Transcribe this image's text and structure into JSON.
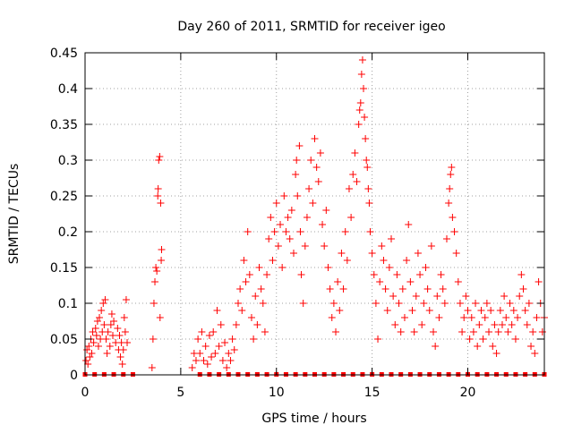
{
  "chart_data": {
    "type": "scatter",
    "title": "Day 260 of 2011, SRMTID for receiver igeo",
    "xlabel": "GPS time / hours",
    "ylabel": "SRMTID / TECUs",
    "xlim": [
      0,
      24
    ],
    "ylim": [
      0,
      0.45
    ],
    "x_ticks": [
      0,
      5,
      10,
      15,
      20
    ],
    "x_tick_labels": [
      "0",
      "5",
      "10",
      "15",
      "20"
    ],
    "y_ticks": [
      0,
      0.05,
      0.1,
      0.15,
      0.2,
      0.25,
      0.3,
      0.35,
      0.4,
      0.45
    ],
    "y_tick_labels": [
      "0",
      "0.05",
      "0.1",
      "0.15",
      "0.2",
      "0.25",
      "0.3",
      "0.35",
      "0.4",
      "0.45"
    ],
    "grid": true,
    "marker": "plus",
    "series": [
      {
        "name": "SRMTID",
        "color": "#ff0000",
        "points": [
          [
            0.05,
            0.02
          ],
          [
            0.1,
            0.035
          ],
          [
            0.15,
            0.015
          ],
          [
            0.2,
            0.04
          ],
          [
            0.25,
            0.025
          ],
          [
            0.3,
            0.05
          ],
          [
            0.35,
            0.03
          ],
          [
            0.4,
            0.06
          ],
          [
            0.45,
            0.045
          ],
          [
            0.55,
            0.065
          ],
          [
            0.6,
            0.055
          ],
          [
            0.65,
            0.075
          ],
          [
            0.7,
            0.04
          ],
          [
            0.75,
            0.08
          ],
          [
            0.8,
            0.05
          ],
          [
            0.85,
            0.09
          ],
          [
            0.9,
            0.06
          ],
          [
            0.95,
            0.1
          ],
          [
            1.0,
            0.07
          ],
          [
            1.05,
            0.105
          ],
          [
            1.1,
            0.05
          ],
          [
            1.15,
            0.03
          ],
          [
            1.2,
            0.06
          ],
          [
            1.3,
            0.04
          ],
          [
            1.35,
            0.07
          ],
          [
            1.4,
            0.085
          ],
          [
            1.45,
            0.055
          ],
          [
            1.5,
            0.075
          ],
          [
            1.6,
            0.045
          ],
          [
            1.7,
            0.065
          ],
          [
            1.75,
            0.035
          ],
          [
            1.8,
            0.055
          ],
          [
            1.85,
            0.025
          ],
          [
            1.9,
            0.045
          ],
          [
            1.95,
            0.015
          ],
          [
            2.0,
            0.035
          ],
          [
            2.05,
            0.08
          ],
          [
            2.1,
            0.06
          ],
          [
            2.15,
            0.105
          ],
          [
            2.2,
            0.045
          ],
          [
            3.5,
            0.01
          ],
          [
            3.55,
            0.05
          ],
          [
            3.6,
            0.1
          ],
          [
            3.65,
            0.13
          ],
          [
            3.7,
            0.15
          ],
          [
            3.75,
            0.145
          ],
          [
            3.8,
            0.25
          ],
          [
            3.82,
            0.26
          ],
          [
            3.85,
            0.3
          ],
          [
            3.9,
            0.305
          ],
          [
            3.95,
            0.24
          ],
          [
            4.0,
            0.175
          ],
          [
            3.98,
            0.16
          ],
          [
            3.92,
            0.08
          ],
          [
            5.6,
            0.01
          ],
          [
            5.7,
            0.03
          ],
          [
            5.8,
            0.02
          ],
          [
            5.9,
            0.05
          ],
          [
            6.0,
            0.03
          ],
          [
            6.1,
            0.06
          ],
          [
            6.2,
            0.02
          ],
          [
            6.3,
            0.04
          ],
          [
            6.4,
            0.015
          ],
          [
            6.5,
            0.055
          ],
          [
            6.6,
            0.025
          ],
          [
            6.7,
            0.06
          ],
          [
            6.8,
            0.03
          ],
          [
            6.9,
            0.09
          ],
          [
            7.0,
            0.04
          ],
          [
            7.1,
            0.07
          ],
          [
            7.2,
            0.02
          ],
          [
            7.3,
            0.045
          ],
          [
            7.4,
            0.01
          ],
          [
            7.5,
            0.03
          ],
          [
            7.6,
            0.02
          ],
          [
            7.7,
            0.05
          ],
          [
            7.8,
            0.035
          ],
          [
            7.9,
            0.07
          ],
          [
            8.0,
            0.1
          ],
          [
            8.1,
            0.12
          ],
          [
            8.2,
            0.09
          ],
          [
            8.3,
            0.16
          ],
          [
            8.4,
            0.13
          ],
          [
            8.5,
            0.2
          ],
          [
            8.6,
            0.14
          ],
          [
            8.7,
            0.08
          ],
          [
            8.8,
            0.05
          ],
          [
            8.9,
            0.11
          ],
          [
            9.0,
            0.07
          ],
          [
            9.1,
            0.15
          ],
          [
            9.2,
            0.12
          ],
          [
            9.3,
            0.1
          ],
          [
            9.4,
            0.06
          ],
          [
            9.5,
            0.14
          ],
          [
            9.6,
            0.19
          ],
          [
            9.7,
            0.22
          ],
          [
            9.8,
            0.16
          ],
          [
            9.9,
            0.2
          ],
          [
            10.0,
            0.24
          ],
          [
            10.1,
            0.18
          ],
          [
            10.2,
            0.21
          ],
          [
            10.3,
            0.15
          ],
          [
            10.4,
            0.25
          ],
          [
            10.5,
            0.2
          ],
          [
            10.6,
            0.22
          ],
          [
            10.7,
            0.19
          ],
          [
            10.8,
            0.23
          ],
          [
            10.9,
            0.17
          ],
          [
            11.0,
            0.28
          ],
          [
            11.05,
            0.3
          ],
          [
            11.1,
            0.25
          ],
          [
            11.2,
            0.32
          ],
          [
            11.25,
            0.2
          ],
          [
            11.3,
            0.14
          ],
          [
            11.4,
            0.1
          ],
          [
            11.5,
            0.18
          ],
          [
            11.6,
            0.22
          ],
          [
            11.7,
            0.26
          ],
          [
            11.8,
            0.3
          ],
          [
            11.9,
            0.24
          ],
          [
            12.0,
            0.33
          ],
          [
            12.1,
            0.29
          ],
          [
            12.2,
            0.27
          ],
          [
            12.3,
            0.31
          ],
          [
            12.4,
            0.21
          ],
          [
            12.5,
            0.18
          ],
          [
            12.6,
            0.23
          ],
          [
            12.7,
            0.15
          ],
          [
            12.8,
            0.12
          ],
          [
            12.9,
            0.08
          ],
          [
            13.0,
            0.1
          ],
          [
            13.1,
            0.06
          ],
          [
            13.2,
            0.13
          ],
          [
            13.3,
            0.09
          ],
          [
            13.4,
            0.17
          ],
          [
            13.5,
            0.12
          ],
          [
            13.6,
            0.2
          ],
          [
            13.7,
            0.16
          ],
          [
            13.8,
            0.26
          ],
          [
            13.9,
            0.22
          ],
          [
            14.0,
            0.28
          ],
          [
            14.1,
            0.31
          ],
          [
            14.2,
            0.27
          ],
          [
            14.3,
            0.35
          ],
          [
            14.35,
            0.37
          ],
          [
            14.4,
            0.38
          ],
          [
            14.45,
            0.42
          ],
          [
            14.5,
            0.44
          ],
          [
            14.55,
            0.4
          ],
          [
            14.6,
            0.36
          ],
          [
            14.65,
            0.33
          ],
          [
            14.7,
            0.3
          ],
          [
            14.75,
            0.29
          ],
          [
            14.8,
            0.26
          ],
          [
            14.85,
            0.24
          ],
          [
            14.9,
            0.2
          ],
          [
            15.0,
            0.17
          ],
          [
            15.1,
            0.14
          ],
          [
            15.2,
            0.1
          ],
          [
            15.3,
            0.05
          ],
          [
            15.4,
            0.13
          ],
          [
            15.5,
            0.18
          ],
          [
            15.6,
            0.16
          ],
          [
            15.7,
            0.12
          ],
          [
            15.8,
            0.09
          ],
          [
            15.9,
            0.15
          ],
          [
            16.0,
            0.19
          ],
          [
            16.1,
            0.11
          ],
          [
            16.2,
            0.07
          ],
          [
            16.3,
            0.14
          ],
          [
            16.4,
            0.1
          ],
          [
            16.5,
            0.06
          ],
          [
            16.6,
            0.12
          ],
          [
            16.7,
            0.08
          ],
          [
            16.8,
            0.16
          ],
          [
            16.9,
            0.21
          ],
          [
            17.0,
            0.13
          ],
          [
            17.1,
            0.09
          ],
          [
            17.2,
            0.06
          ],
          [
            17.3,
            0.11
          ],
          [
            17.4,
            0.17
          ],
          [
            17.5,
            0.14
          ],
          [
            17.6,
            0.07
          ],
          [
            17.7,
            0.1
          ],
          [
            17.8,
            0.15
          ],
          [
            17.9,
            0.12
          ],
          [
            18.0,
            0.09
          ],
          [
            18.1,
            0.18
          ],
          [
            18.2,
            0.06
          ],
          [
            18.3,
            0.04
          ],
          [
            18.4,
            0.11
          ],
          [
            18.5,
            0.08
          ],
          [
            18.6,
            0.14
          ],
          [
            18.7,
            0.12
          ],
          [
            18.8,
            0.1
          ],
          [
            18.9,
            0.19
          ],
          [
            19.0,
            0.24
          ],
          [
            19.05,
            0.26
          ],
          [
            19.1,
            0.28
          ],
          [
            19.15,
            0.29
          ],
          [
            19.2,
            0.22
          ],
          [
            19.3,
            0.2
          ],
          [
            19.4,
            0.17
          ],
          [
            19.5,
            0.13
          ],
          [
            19.6,
            0.1
          ],
          [
            19.7,
            0.06
          ],
          [
            19.8,
            0.08
          ],
          [
            19.9,
            0.11
          ],
          [
            20.0,
            0.09
          ],
          [
            20.1,
            0.05
          ],
          [
            20.2,
            0.08
          ],
          [
            20.3,
            0.06
          ],
          [
            20.4,
            0.1
          ],
          [
            20.5,
            0.04
          ],
          [
            20.6,
            0.07
          ],
          [
            20.7,
            0.09
          ],
          [
            20.8,
            0.05
          ],
          [
            20.9,
            0.08
          ],
          [
            21.0,
            0.1
          ],
          [
            21.1,
            0.06
          ],
          [
            21.2,
            0.09
          ],
          [
            21.3,
            0.04
          ],
          [
            21.4,
            0.07
          ],
          [
            21.5,
            0.03
          ],
          [
            21.6,
            0.06
          ],
          [
            21.7,
            0.09
          ],
          [
            21.8,
            0.07
          ],
          [
            21.9,
            0.11
          ],
          [
            22.0,
            0.08
          ],
          [
            22.1,
            0.06
          ],
          [
            22.2,
            0.1
          ],
          [
            22.3,
            0.07
          ],
          [
            22.4,
            0.09
          ],
          [
            22.5,
            0.05
          ],
          [
            22.6,
            0.08
          ],
          [
            22.7,
            0.11
          ],
          [
            22.8,
            0.14
          ],
          [
            22.9,
            0.12
          ],
          [
            23.0,
            0.09
          ],
          [
            23.1,
            0.07
          ],
          [
            23.2,
            0.1
          ],
          [
            23.3,
            0.04
          ],
          [
            23.4,
            0.06
          ],
          [
            23.5,
            0.03
          ],
          [
            23.6,
            0.08
          ],
          [
            23.7,
            0.13
          ],
          [
            23.8,
            0.1
          ],
          [
            23.9,
            0.06
          ],
          [
            24.0,
            0.08
          ]
        ],
        "baseline_markers_x": [
          0.0,
          0.5,
          1.0,
          1.5,
          2.0,
          2.5,
          6.0,
          6.5,
          7.0,
          7.5,
          8.0,
          8.5,
          9.0,
          9.5,
          10.0,
          10.5,
          11.0,
          11.5,
          12.0,
          12.5,
          13.0,
          13.5,
          14.0,
          14.5,
          15.0,
          15.5,
          16.0,
          16.5,
          17.0,
          17.5,
          18.0,
          18.5,
          19.0,
          19.5,
          20.0,
          20.5,
          21.0,
          21.5,
          22.0,
          22.5,
          23.0,
          23.5,
          24.0
        ]
      }
    ]
  }
}
